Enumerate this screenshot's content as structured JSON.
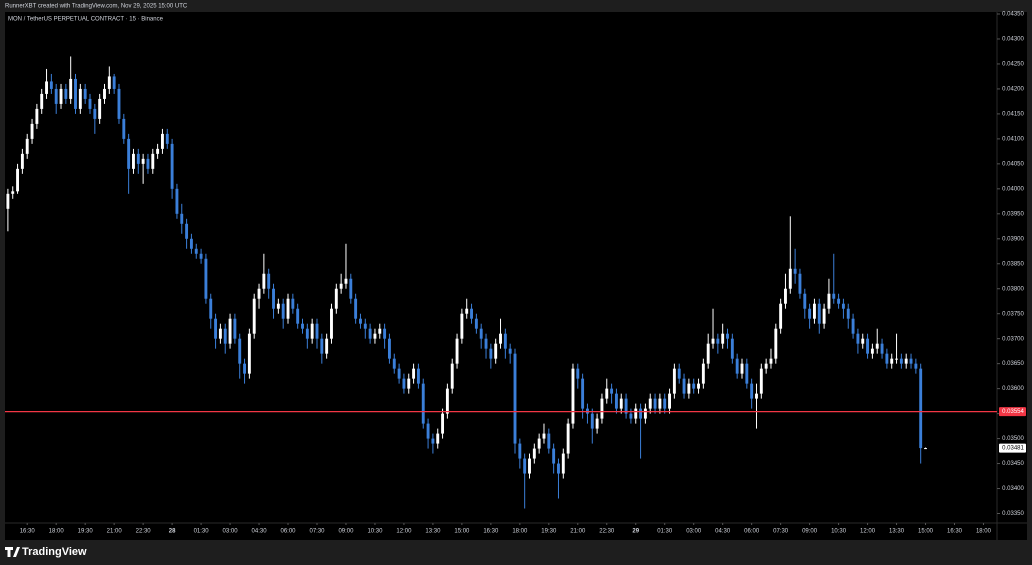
{
  "chart_data": {
    "type": "candlestick",
    "caption": "RunnerXBT created with TradingView.com, Nov 29, 2025 15:00 UTC",
    "title": "MON / TetherUS PERPETUAL CONTRACT · 15 · Binance",
    "brand": "TradingView",
    "up_color": "#ffffff",
    "down_color": "#3b7fd9",
    "grid": false,
    "hline": {
      "value": 0.03554,
      "color": "#f23645"
    },
    "ylim": [
      0.03331,
      0.04352
    ],
    "yticks": [
      {
        "value": 0.0435,
        "label": "0.04350"
      },
      {
        "value": 0.043,
        "label": "0.04300"
      },
      {
        "value": 0.0425,
        "label": "0.04250"
      },
      {
        "value": 0.042,
        "label": "0.04200"
      },
      {
        "value": 0.0415,
        "label": "0.04150"
      },
      {
        "value": 0.041,
        "label": "0.04100"
      },
      {
        "value": 0.0405,
        "label": "0.04050"
      },
      {
        "value": 0.04,
        "label": "0.04000"
      },
      {
        "value": 0.0395,
        "label": "0.03950"
      },
      {
        "value": 0.039,
        "label": "0.03900"
      },
      {
        "value": 0.0385,
        "label": "0.03850"
      },
      {
        "value": 0.038,
        "label": "0.03800"
      },
      {
        "value": 0.0375,
        "label": "0.03750"
      },
      {
        "value": 0.037,
        "label": "0.03700"
      },
      {
        "value": 0.0365,
        "label": "0.03650"
      },
      {
        "value": 0.036,
        "label": "0.03600"
      },
      {
        "value": 0.0355,
        "label": "0.03550"
      },
      {
        "value": 0.035,
        "label": "0.03500"
      },
      {
        "value": 0.0345,
        "label": "0.03450"
      },
      {
        "value": 0.034,
        "label": "0.03400"
      },
      {
        "value": 0.0335,
        "label": "0.03350"
      }
    ],
    "xlim": [
      -0.6,
      204.8
    ],
    "xticks": [
      {
        "value": 4,
        "label": "16:30"
      },
      {
        "value": 10,
        "label": "18:00"
      },
      {
        "value": 16,
        "label": "19:30"
      },
      {
        "value": 22,
        "label": "21:00"
      },
      {
        "value": 28,
        "label": "22:30"
      },
      {
        "value": 34,
        "label": "28"
      },
      {
        "value": 40,
        "label": "01:30"
      },
      {
        "value": 46,
        "label": "03:00"
      },
      {
        "value": 52,
        "label": "04:30"
      },
      {
        "value": 58,
        "label": "06:00"
      },
      {
        "value": 64,
        "label": "07:30"
      },
      {
        "value": 70,
        "label": "09:00"
      },
      {
        "value": 76,
        "label": "10:30"
      },
      {
        "value": 82,
        "label": "12:00"
      },
      {
        "value": 88,
        "label": "13:30"
      },
      {
        "value": 94,
        "label": "15:00"
      },
      {
        "value": 100,
        "label": "16:30"
      },
      {
        "value": 106,
        "label": "18:00"
      },
      {
        "value": 112,
        "label": "19:30"
      },
      {
        "value": 118,
        "label": "21:00"
      },
      {
        "value": 124,
        "label": "22:30"
      },
      {
        "value": 130,
        "label": "29"
      },
      {
        "value": 136,
        "label": "01:30"
      },
      {
        "value": 142,
        "label": "03:00"
      },
      {
        "value": 148,
        "label": "04:30"
      },
      {
        "value": 154,
        "label": "06:00"
      },
      {
        "value": 160,
        "label": "07:30"
      },
      {
        "value": 166,
        "label": "09:00"
      },
      {
        "value": 172,
        "label": "10:30"
      },
      {
        "value": 178,
        "label": "12:00"
      },
      {
        "value": 184,
        "label": "13:30"
      },
      {
        "value": 190,
        "label": "15:00"
      },
      {
        "value": 196,
        "label": "16:30"
      },
      {
        "value": 202,
        "label": "18:00"
      }
    ],
    "candles": [
      [
        0.0396,
        0.04,
        0.03915,
        0.0399
      ],
      [
        0.0399,
        0.04005,
        0.0398,
        0.03995
      ],
      [
        0.03995,
        0.0405,
        0.0399,
        0.0404
      ],
      [
        0.0404,
        0.0408,
        0.0403,
        0.0407
      ],
      [
        0.0407,
        0.0411,
        0.0406,
        0.041
      ],
      [
        0.041,
        0.0414,
        0.0409,
        0.0413
      ],
      [
        0.0413,
        0.0417,
        0.0412,
        0.0416
      ],
      [
        0.0416,
        0.042,
        0.0415,
        0.0419
      ],
      [
        0.0419,
        0.0424,
        0.0418,
        0.04215
      ],
      [
        0.04215,
        0.0423,
        0.0419,
        0.042
      ],
      [
        0.042,
        0.0421,
        0.0415,
        0.0417
      ],
      [
        0.0417,
        0.0421,
        0.0416,
        0.042
      ],
      [
        0.042,
        0.0421,
        0.0417,
        0.0418
      ],
      [
        0.0418,
        0.04265,
        0.0417,
        0.0422
      ],
      [
        0.0422,
        0.0423,
        0.0415,
        0.0416
      ],
      [
        0.0416,
        0.0421,
        0.0415,
        0.042
      ],
      [
        0.042,
        0.0421,
        0.0417,
        0.0418
      ],
      [
        0.0418,
        0.0419,
        0.0415,
        0.0416
      ],
      [
        0.0416,
        0.0417,
        0.0411,
        0.0414
      ],
      [
        0.0414,
        0.0419,
        0.0413,
        0.0418
      ],
      [
        0.0418,
        0.0421,
        0.0417,
        0.042
      ],
      [
        0.042,
        0.04245,
        0.0419,
        0.04225
      ],
      [
        0.04225,
        0.0423,
        0.0419,
        0.042
      ],
      [
        0.042,
        0.0421,
        0.0413,
        0.0414
      ],
      [
        0.0414,
        0.0415,
        0.0409,
        0.041
      ],
      [
        0.041,
        0.0411,
        0.0399,
        0.0404
      ],
      [
        0.0404,
        0.0408,
        0.0403,
        0.0407
      ],
      [
        0.0407,
        0.0408,
        0.0403,
        0.0405
      ],
      [
        0.0405,
        0.0407,
        0.0401,
        0.0406
      ],
      [
        0.0406,
        0.0407,
        0.0403,
        0.0404
      ],
      [
        0.0404,
        0.0408,
        0.0403,
        0.0407
      ],
      [
        0.0407,
        0.0409,
        0.0406,
        0.0408
      ],
      [
        0.0408,
        0.0412,
        0.0407,
        0.0411
      ],
      [
        0.0411,
        0.0412,
        0.0408,
        0.0409
      ],
      [
        0.0409,
        0.041,
        0.0398,
        0.04
      ],
      [
        0.04,
        0.0401,
        0.0394,
        0.0395
      ],
      [
        0.0395,
        0.0397,
        0.0391,
        0.0393
      ],
      [
        0.0393,
        0.0394,
        0.0388,
        0.039
      ],
      [
        0.039,
        0.0391,
        0.0387,
        0.0388
      ],
      [
        0.0388,
        0.0389,
        0.0386,
        0.0387
      ],
      [
        0.0387,
        0.0388,
        0.0385,
        0.0386
      ],
      [
        0.0386,
        0.0387,
        0.0377,
        0.0378
      ],
      [
        0.0378,
        0.0379,
        0.0372,
        0.0374
      ],
      [
        0.0374,
        0.0375,
        0.0368,
        0.037
      ],
      [
        0.037,
        0.0373,
        0.0369,
        0.0372
      ],
      [
        0.0372,
        0.0373,
        0.0367,
        0.0369
      ],
      [
        0.0369,
        0.0375,
        0.0368,
        0.0374
      ],
      [
        0.0374,
        0.0375,
        0.0369,
        0.037
      ],
      [
        0.037,
        0.0371,
        0.0362,
        0.0365
      ],
      [
        0.0365,
        0.0366,
        0.0361,
        0.0363
      ],
      [
        0.0363,
        0.0372,
        0.0362,
        0.0371
      ],
      [
        0.0371,
        0.0379,
        0.037,
        0.0378
      ],
      [
        0.0378,
        0.0381,
        0.0376,
        0.038
      ],
      [
        0.038,
        0.0387,
        0.0379,
        0.0383
      ],
      [
        0.0383,
        0.0384,
        0.0378,
        0.038
      ],
      [
        0.038,
        0.0381,
        0.0374,
        0.0376
      ],
      [
        0.0376,
        0.0378,
        0.0375,
        0.0377
      ],
      [
        0.0377,
        0.0378,
        0.0372,
        0.0374
      ],
      [
        0.0374,
        0.0379,
        0.0373,
        0.0378
      ],
      [
        0.0378,
        0.0379,
        0.0375,
        0.0376
      ],
      [
        0.0376,
        0.0377,
        0.0372,
        0.0373
      ],
      [
        0.0373,
        0.0374,
        0.0371,
        0.0372
      ],
      [
        0.0372,
        0.0373,
        0.0368,
        0.037
      ],
      [
        0.037,
        0.0374,
        0.0369,
        0.0373
      ],
      [
        0.0373,
        0.0374,
        0.0368,
        0.037
      ],
      [
        0.037,
        0.0371,
        0.0365,
        0.0367
      ],
      [
        0.0367,
        0.0371,
        0.0366,
        0.037
      ],
      [
        0.037,
        0.0377,
        0.0369,
        0.0376
      ],
      [
        0.0376,
        0.0381,
        0.0375,
        0.038
      ],
      [
        0.038,
        0.0383,
        0.0379,
        0.0381
      ],
      [
        0.0381,
        0.0389,
        0.038,
        0.0382
      ],
      [
        0.0382,
        0.0383,
        0.0377,
        0.0378
      ],
      [
        0.0378,
        0.0379,
        0.0373,
        0.0374
      ],
      [
        0.0374,
        0.0375,
        0.0372,
        0.0373
      ],
      [
        0.0373,
        0.0374,
        0.037,
        0.0372
      ],
      [
        0.0372,
        0.0373,
        0.0369,
        0.037
      ],
      [
        0.037,
        0.0372,
        0.0369,
        0.0371
      ],
      [
        0.0371,
        0.0373,
        0.037,
        0.0372
      ],
      [
        0.0372,
        0.0373,
        0.0368,
        0.037
      ],
      [
        0.037,
        0.0371,
        0.0365,
        0.0366
      ],
      [
        0.0366,
        0.0367,
        0.0363,
        0.0364
      ],
      [
        0.0364,
        0.0365,
        0.0361,
        0.0362
      ],
      [
        0.0362,
        0.0363,
        0.0359,
        0.036
      ],
      [
        0.036,
        0.0363,
        0.0359,
        0.0362
      ],
      [
        0.0362,
        0.0365,
        0.0361,
        0.0364
      ],
      [
        0.0364,
        0.0365,
        0.036,
        0.0361
      ],
      [
        0.0361,
        0.0362,
        0.0352,
        0.0353
      ],
      [
        0.0353,
        0.0354,
        0.0348,
        0.035
      ],
      [
        0.035,
        0.0351,
        0.0347,
        0.0349
      ],
      [
        0.0349,
        0.0352,
        0.0348,
        0.0351
      ],
      [
        0.0351,
        0.0356,
        0.035,
        0.0355
      ],
      [
        0.0355,
        0.0361,
        0.0354,
        0.036
      ],
      [
        0.036,
        0.0366,
        0.0359,
        0.0365
      ],
      [
        0.0365,
        0.0371,
        0.0364,
        0.037
      ],
      [
        0.037,
        0.0376,
        0.0369,
        0.0375
      ],
      [
        0.0375,
        0.0378,
        0.0374,
        0.0376
      ],
      [
        0.0376,
        0.0377,
        0.0373,
        0.0374
      ],
      [
        0.0374,
        0.0375,
        0.0371,
        0.0372
      ],
      [
        0.0372,
        0.0373,
        0.0368,
        0.037
      ],
      [
        0.037,
        0.0371,
        0.0366,
        0.0368
      ],
      [
        0.0368,
        0.0369,
        0.0364,
        0.0366
      ],
      [
        0.0366,
        0.037,
        0.0365,
        0.0369
      ],
      [
        0.0369,
        0.0374,
        0.0368,
        0.0371
      ],
      [
        0.0371,
        0.0372,
        0.0366,
        0.0368
      ],
      [
        0.0368,
        0.0369,
        0.0365,
        0.0367
      ],
      [
        0.0367,
        0.0368,
        0.0347,
        0.0349
      ],
      [
        0.0349,
        0.035,
        0.0344,
        0.0346
      ],
      [
        0.0346,
        0.0347,
        0.0336,
        0.0343
      ],
      [
        0.0343,
        0.0347,
        0.0342,
        0.0346
      ],
      [
        0.0346,
        0.0349,
        0.0345,
        0.0348
      ],
      [
        0.0348,
        0.0351,
        0.0347,
        0.035
      ],
      [
        0.035,
        0.0353,
        0.0349,
        0.0351
      ],
      [
        0.0351,
        0.0352,
        0.0347,
        0.0348
      ],
      [
        0.0348,
        0.0349,
        0.0343,
        0.0345
      ],
      [
        0.0345,
        0.0346,
        0.0338,
        0.0343
      ],
      [
        0.0343,
        0.0348,
        0.0342,
        0.0347
      ],
      [
        0.0347,
        0.0354,
        0.0346,
        0.0353
      ],
      [
        0.0353,
        0.0365,
        0.0352,
        0.0364
      ],
      [
        0.0364,
        0.0365,
        0.036,
        0.0362
      ],
      [
        0.0362,
        0.0363,
        0.0354,
        0.0356
      ],
      [
        0.0356,
        0.0357,
        0.0353,
        0.0355
      ],
      [
        0.0355,
        0.0356,
        0.0349,
        0.0352
      ],
      [
        0.0352,
        0.0355,
        0.0351,
        0.0354
      ],
      [
        0.0354,
        0.0359,
        0.0353,
        0.0358
      ],
      [
        0.0358,
        0.0362,
        0.0357,
        0.036
      ],
      [
        0.036,
        0.0361,
        0.0357,
        0.0359
      ],
      [
        0.0359,
        0.036,
        0.0355,
        0.0356
      ],
      [
        0.0356,
        0.0359,
        0.0355,
        0.0358
      ],
      [
        0.0358,
        0.0359,
        0.0354,
        0.0355
      ],
      [
        0.0355,
        0.0356,
        0.0353,
        0.0354
      ],
      [
        0.0354,
        0.0357,
        0.0353,
        0.0356
      ],
      [
        0.0356,
        0.0357,
        0.0346,
        0.0354
      ],
      [
        0.0354,
        0.0357,
        0.0353,
        0.0356
      ],
      [
        0.0356,
        0.0359,
        0.0355,
        0.0358
      ],
      [
        0.0358,
        0.0359,
        0.0355,
        0.0356
      ],
      [
        0.0356,
        0.0359,
        0.0355,
        0.0358
      ],
      [
        0.0358,
        0.0359,
        0.0355,
        0.0356
      ],
      [
        0.0356,
        0.036,
        0.0355,
        0.0359
      ],
      [
        0.0359,
        0.0365,
        0.0358,
        0.0364
      ],
      [
        0.0364,
        0.0365,
        0.0361,
        0.0362
      ],
      [
        0.0362,
        0.0363,
        0.0358,
        0.0359
      ],
      [
        0.0359,
        0.0362,
        0.0358,
        0.0361
      ],
      [
        0.0361,
        0.0362,
        0.0359,
        0.036
      ],
      [
        0.036,
        0.0362,
        0.0359,
        0.0361
      ],
      [
        0.0361,
        0.0366,
        0.036,
        0.0365
      ],
      [
        0.0365,
        0.0371,
        0.0364,
        0.0369
      ],
      [
        0.0369,
        0.0376,
        0.0368,
        0.037
      ],
      [
        0.037,
        0.0371,
        0.0367,
        0.0369
      ],
      [
        0.0369,
        0.0373,
        0.0368,
        0.0371
      ],
      [
        0.0371,
        0.0372,
        0.0368,
        0.037
      ],
      [
        0.037,
        0.0371,
        0.0365,
        0.0366
      ],
      [
        0.0366,
        0.0367,
        0.0362,
        0.0363
      ],
      [
        0.0363,
        0.0366,
        0.0362,
        0.0365
      ],
      [
        0.0365,
        0.0366,
        0.036,
        0.0361
      ],
      [
        0.0361,
        0.0362,
        0.0356,
        0.0358
      ],
      [
        0.0358,
        0.0361,
        0.0352,
        0.0359
      ],
      [
        0.0359,
        0.0365,
        0.0358,
        0.0364
      ],
      [
        0.0364,
        0.0366,
        0.0363,
        0.0365
      ],
      [
        0.0365,
        0.0368,
        0.0364,
        0.0366
      ],
      [
        0.0366,
        0.0373,
        0.0365,
        0.0372
      ],
      [
        0.0372,
        0.0378,
        0.0371,
        0.0377
      ],
      [
        0.0377,
        0.0383,
        0.0376,
        0.038
      ],
      [
        0.038,
        0.03945,
        0.0379,
        0.0384
      ],
      [
        0.0384,
        0.0388,
        0.0381,
        0.0383
      ],
      [
        0.0383,
        0.0384,
        0.0378,
        0.0379
      ],
      [
        0.0379,
        0.038,
        0.0374,
        0.0376
      ],
      [
        0.0376,
        0.0377,
        0.0372,
        0.0374
      ],
      [
        0.0374,
        0.0378,
        0.0373,
        0.0377
      ],
      [
        0.0377,
        0.0378,
        0.0371,
        0.0373
      ],
      [
        0.0373,
        0.0377,
        0.0372,
        0.0376
      ],
      [
        0.0376,
        0.0382,
        0.0375,
        0.0379
      ],
      [
        0.0379,
        0.0387,
        0.0377,
        0.0378
      ],
      [
        0.0378,
        0.0379,
        0.0376,
        0.0377
      ],
      [
        0.0377,
        0.0378,
        0.0374,
        0.0376
      ],
      [
        0.0376,
        0.0377,
        0.0372,
        0.0374
      ],
      [
        0.0374,
        0.0375,
        0.037,
        0.0371
      ],
      [
        0.0371,
        0.0372,
        0.0367,
        0.0369
      ],
      [
        0.0369,
        0.0371,
        0.0368,
        0.037
      ],
      [
        0.037,
        0.0371,
        0.0366,
        0.0367
      ],
      [
        0.0367,
        0.0369,
        0.0366,
        0.0368
      ],
      [
        0.0368,
        0.0372,
        0.0367,
        0.0369
      ],
      [
        0.0369,
        0.037,
        0.0366,
        0.0367
      ],
      [
        0.0367,
        0.0368,
        0.0364,
        0.0365
      ],
      [
        0.0365,
        0.0367,
        0.0364,
        0.0366
      ],
      [
        0.0366,
        0.0371,
        0.0365,
        0.0366
      ],
      [
        0.0366,
        0.0367,
        0.0364,
        0.0365
      ],
      [
        0.0365,
        0.0367,
        0.0364,
        0.0366
      ],
      [
        0.0366,
        0.0367,
        0.0364,
        0.0365
      ],
      [
        0.0365,
        0.0366,
        0.0363,
        0.0364
      ],
      [
        0.0364,
        0.0365,
        0.0345,
        0.03481
      ],
      [
        0.03481,
        0.03482,
        0.0348,
        0.03481
      ]
    ]
  }
}
